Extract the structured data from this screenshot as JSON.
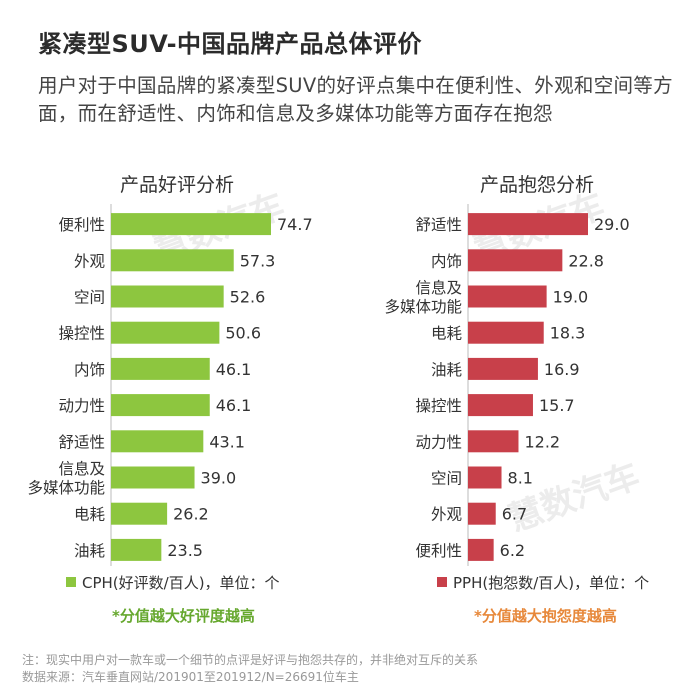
{
  "title": "紧凑型SUV-中国品牌产品总体评价",
  "subtitle": "用户对于中国品牌的紧凑型SUV的好评点集中在便利性、外观和空间等方面，而在舒适性、内饰和信息及多媒体功能等方面存在抱怨",
  "watermark": "慧数汽车",
  "chart_data": [
    {
      "type": "bar",
      "orientation": "horizontal",
      "title": "产品好评分析",
      "categories": [
        "便利性",
        "外观",
        "空间",
        "操控性",
        "内饰",
        "动力性",
        "舒适性",
        "信息及\n多媒体功能",
        "电耗",
        "油耗"
      ],
      "values": [
        74.7,
        57.3,
        52.6,
        50.6,
        46.1,
        46.1,
        43.1,
        39.0,
        26.2,
        23.5
      ],
      "value_labels": [
        "74.7",
        "57.3",
        "52.6",
        "50.6",
        "46.1",
        "46.1",
        "43.1",
        "39.0",
        "26.2",
        "23.5"
      ],
      "color": "#8dc63f",
      "legend": "CPH(好评数/百人)，单位：个",
      "note": "*分值越大好评度越高",
      "note_color": "#66a82e"
    },
    {
      "type": "bar",
      "orientation": "horizontal",
      "title": "产品抱怨分析",
      "categories": [
        "舒适性",
        "内饰",
        "信息及\n多媒体功能",
        "电耗",
        "油耗",
        "操控性",
        "动力性",
        "空间",
        "外观",
        "便利性"
      ],
      "values": [
        29.0,
        22.8,
        19.0,
        18.3,
        16.9,
        15.7,
        12.2,
        8.1,
        6.7,
        6.2
      ],
      "value_labels": [
        "29.0",
        "22.8",
        "19.0",
        "18.3",
        "16.9",
        "15.7",
        "12.2",
        "8.1",
        "6.7",
        "6.2"
      ],
      "color": "#c8404a",
      "legend": "PPH(抱怨数/百人)，单位：个",
      "note": "*分值越大抱怨度越高",
      "note_color": "#e7883a"
    }
  ],
  "footer": {
    "note": "注：现实中用户对一款车或一个细节的点评是好评与抱怨共存的，并非绝对互斥的关系",
    "source": "数据来源：汽车垂直网站/201901至201912/N=26691位车主"
  }
}
